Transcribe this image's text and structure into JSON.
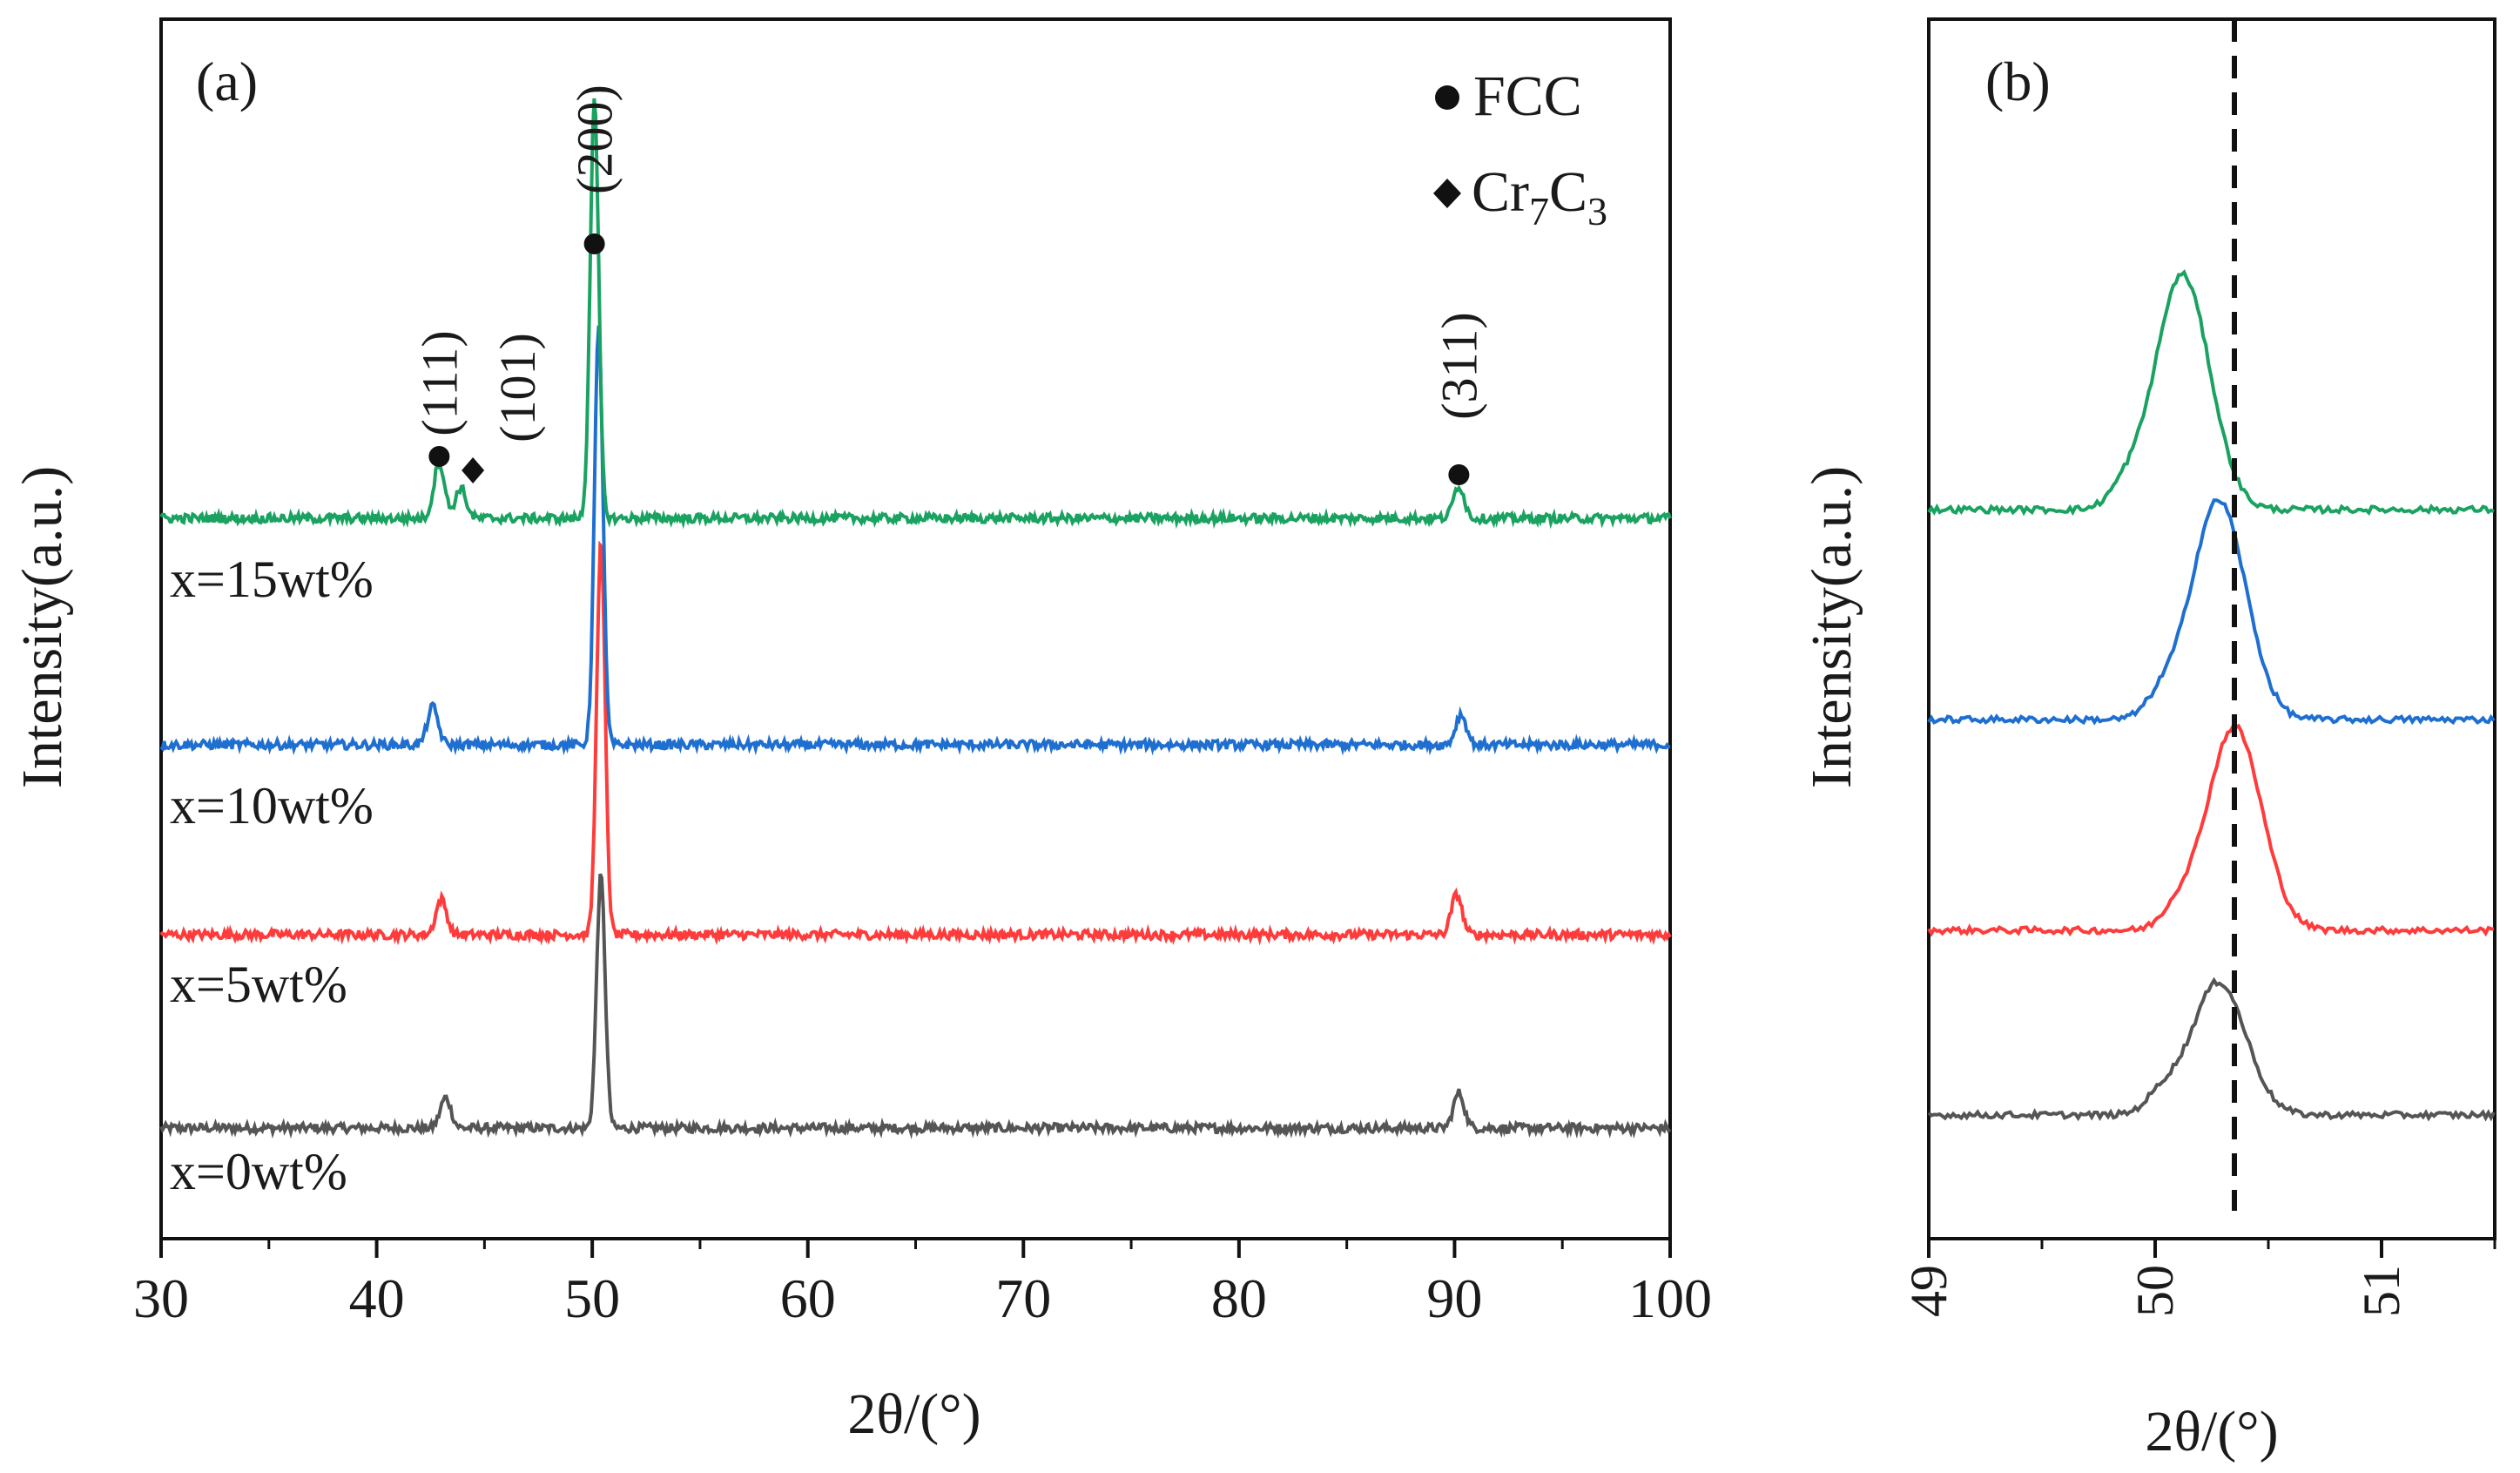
{
  "colors": {
    "x15": "#1aa260",
    "x10": "#1f6fd1",
    "x5": "#ff3b3b",
    "x0": "#555555",
    "axis": "#111111",
    "marker": "#111111"
  },
  "chart_data": [
    {
      "panel": "(a)",
      "type": "line",
      "xlabel": "2θ/(°)",
      "ylabel": "Intensity(a.u.)",
      "xlim": [
        30,
        100
      ],
      "xticks": [
        "30",
        "40",
        "50",
        "60",
        "70",
        "80",
        "90",
        "100"
      ],
      "yticks": [],
      "legend": [
        {
          "marker": "circle",
          "label": "FCC",
          "label_display": "● FCC"
        },
        {
          "marker": "diamond",
          "label": "Cr7C3",
          "main": "Cr",
          "sub1": "7",
          "mid": "C",
          "sub2": "3"
        }
      ],
      "legend_position": "top-right",
      "series": [
        {
          "key": "x0",
          "name": "x=0wt%",
          "offset": 0,
          "peaks": [
            {
              "x": 43.2,
              "h": 0.12
            },
            {
              "x": 50.4,
              "h": 1.0
            },
            {
              "x": 90.2,
              "h": 0.14
            }
          ]
        },
        {
          "key": "x5",
          "name": "x=5wt%",
          "offset": 1,
          "peaks": [
            {
              "x": 43.0,
              "h": 0.14
            },
            {
              "x": 50.4,
              "h": 1.55
            },
            {
              "x": 90.1,
              "h": 0.16
            }
          ]
        },
        {
          "key": "x10",
          "name": "x=10wt%",
          "offset": 2,
          "peaks": [
            {
              "x": 42.6,
              "h": 0.15
            },
            {
              "x": 50.3,
              "h": 1.65
            },
            {
              "x": 90.3,
              "h": 0.12
            }
          ]
        },
        {
          "key": "x15",
          "name": "x=15wt%",
          "offset": 3,
          "peaks": [
            {
              "x": 42.9,
              "h": 0.22
            },
            {
              "x": 43.9,
              "h": 0.12
            },
            {
              "x": 50.1,
              "h": 1.65
            },
            {
              "x": 90.2,
              "h": 0.13
            }
          ]
        }
      ],
      "annotations": [
        {
          "label": "(111)",
          "x": 42.9,
          "marker": "circle"
        },
        {
          "label": "(101)",
          "x": 43.9,
          "marker": "diamond"
        },
        {
          "label": "(200)",
          "x": 50.1,
          "marker": "circle"
        },
        {
          "label": "(311)",
          "x": 90.2,
          "marker": "circle"
        }
      ]
    },
    {
      "panel": "(b)",
      "type": "line",
      "xlabel": "2θ/(°)",
      "ylabel": "Intensity(a.u.)",
      "xlim": [
        49,
        51.5
      ],
      "xticks": [
        "49",
        "50",
        "51"
      ],
      "reference_line_x": 50.35,
      "series": [
        {
          "key": "x0",
          "name": "x=0wt%",
          "peak_x": 50.28,
          "h": 0.85
        },
        {
          "key": "x5",
          "name": "x=5wt%",
          "peak_x": 50.35,
          "h": 1.3
        },
        {
          "key": "x10",
          "name": "x=10wt%",
          "peak_x": 50.28,
          "h": 1.4
        },
        {
          "key": "x15",
          "name": "x=15wt%",
          "peak_x": 50.12,
          "h": 1.5
        }
      ]
    }
  ]
}
